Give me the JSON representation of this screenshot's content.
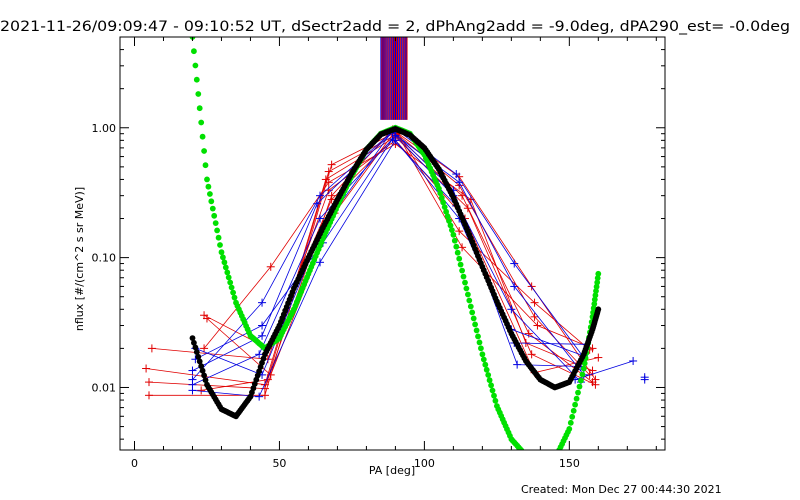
{
  "chart_data": {
    "type": "line",
    "title": "2021-11-26/09:09:47 - 09:10:52 UT, dSectr2add = 2, dPhAng2add = -9.0deg, dPA290_est= -0.0deg",
    "xlabel": "PA [deg]",
    "ylabel": "nflux [#/(cm^2 s sr MeV)]",
    "footer": "Created: Mon Dec 27 00:44:30 2021",
    "xlim": [
      -5,
      183
    ],
    "ylim": [
      0.0033,
      5.0
    ],
    "yscale": "log",
    "x_ticks": [
      0,
      50,
      100,
      150
    ],
    "x_tick_labels": [
      "0",
      "50",
      "100",
      "150"
    ],
    "y_ticks": [
      0.01,
      0.1,
      1.0
    ],
    "y_tick_labels": [
      "0.01",
      "0.10",
      "1.00"
    ],
    "colors": {
      "red": "#e00000",
      "blue": "#0000e0",
      "green": "#00e000",
      "black": "#000000",
      "axes": "#000000"
    },
    "vertical_lines": {
      "x_range": [
        85,
        94
      ],
      "y_range": [
        1.15,
        5.0
      ],
      "colors": [
        "#0000e0",
        "#e00000"
      ]
    },
    "series": [
      {
        "color": "#e00000",
        "x": [
          5,
          45,
          68,
          90,
          112,
          138,
          157
        ],
        "y": [
          0.0087,
          0.0087,
          0.52,
          0.92,
          0.36,
          0.035,
          0.0125
        ]
      },
      {
        "color": "#e00000",
        "x": [
          5,
          45,
          67,
          90,
          113,
          136,
          158
        ],
        "y": [
          0.011,
          0.0098,
          0.46,
          0.88,
          0.3,
          0.026,
          0.011
        ]
      },
      {
        "color": "#e00000",
        "x": [
          4,
          45,
          66,
          90,
          115,
          137,
          159
        ],
        "y": [
          0.014,
          0.0105,
          0.4,
          0.85,
          0.24,
          0.018,
          0.0105
        ]
      },
      {
        "color": "#e00000",
        "x": [
          6,
          46,
          67,
          90,
          114,
          138,
          160
        ],
        "y": [
          0.02,
          0.0165,
          0.33,
          0.8,
          0.2,
          0.013,
          0.017
        ]
      },
      {
        "color": "#e00000",
        "x": [
          24,
          46,
          68,
          91,
          112,
          138,
          157
        ],
        "y": [
          0.036,
          0.02,
          0.28,
          0.9,
          0.16,
          0.045,
          0.0195
        ]
      },
      {
        "color": "#e00000",
        "x": [
          25,
          47,
          69,
          90,
          113,
          139,
          158
        ],
        "y": [
          0.034,
          0.0125,
          0.22,
          0.95,
          0.12,
          0.03,
          0.02
        ]
      },
      {
        "color": "#e00000",
        "x": [
          24,
          47,
          67,
          90,
          116,
          135,
          158
        ],
        "y": [
          0.02,
          0.085,
          0.38,
          0.75,
          0.28,
          0.022,
          0.0135
        ]
      },
      {
        "color": "#e00000",
        "x": [
          23,
          46,
          68,
          89,
          112,
          137,
          159
        ],
        "y": [
          0.0095,
          0.0115,
          0.3,
          0.97,
          0.42,
          0.06,
          0.0115
        ]
      },
      {
        "color": "#0000e0",
        "x": [
          20,
          44,
          64,
          90,
          111,
          131,
          155
        ],
        "y": [
          0.0115,
          0.045,
          0.3,
          0.98,
          0.44,
          0.09,
          0.017
        ]
      },
      {
        "color": "#0000e0",
        "x": [
          20,
          44,
          63,
          89,
          112,
          131,
          155
        ],
        "y": [
          0.0135,
          0.025,
          0.26,
          0.92,
          0.38,
          0.06,
          0.0125
        ]
      },
      {
        "color": "#0000e0",
        "x": [
          20,
          43,
          64,
          90,
          110,
          130,
          154
        ],
        "y": [
          0.0105,
          0.018,
          0.2,
          0.87,
          0.3,
          0.04,
          0.011
        ]
      },
      {
        "color": "#0000e0",
        "x": [
          21,
          44,
          65,
          89,
          111,
          130,
          155
        ],
        "y": [
          0.0165,
          0.03,
          0.13,
          0.82,
          0.25,
          0.028,
          0.0175
        ]
      },
      {
        "color": "#0000e0",
        "x": [
          20,
          43,
          64,
          90,
          112,
          131,
          156
        ],
        "y": [
          0.0095,
          0.0085,
          0.092,
          0.8,
          0.2,
          0.022,
          0.0215
        ]
      },
      {
        "color": "#0000e0",
        "x": [
          21,
          44,
          65,
          89,
          110,
          132,
          154
        ],
        "y": [
          0.02,
          0.0125,
          0.17,
          0.95,
          0.33,
          0.015,
          0.0145
        ]
      },
      {
        "color": "#0000e0",
        "x": [
          152,
          172
        ],
        "y": [
          0.0115,
          0.016
        ]
      }
    ],
    "extra_markers": [
      {
        "color": "#0000e0",
        "x": 176,
        "y": 0.012
      },
      {
        "color": "#0000e0",
        "x": 176,
        "y": 0.0115
      }
    ],
    "fit_curves": [
      {
        "name": "",
        "color": "#00e000",
        "x": [
          20,
          25,
          30,
          35,
          40,
          45,
          50,
          55,
          60,
          65,
          70,
          75,
          80,
          85,
          90,
          95,
          100,
          105,
          110,
          115,
          120,
          125,
          130,
          135,
          140,
          145,
          150,
          155,
          158,
          160
        ],
        "y": [
          5.0,
          0.4,
          0.11,
          0.045,
          0.025,
          0.02,
          0.024,
          0.04,
          0.075,
          0.14,
          0.25,
          0.43,
          0.68,
          0.9,
          1.0,
          0.9,
          0.62,
          0.34,
          0.15,
          0.052,
          0.018,
          0.0072,
          0.004,
          0.003,
          0.0025,
          0.0028,
          0.0048,
          0.014,
          0.035,
          0.075
        ]
      },
      {
        "name": "",
        "color": "#000000",
        "x": [
          20,
          25,
          30,
          35,
          40,
          45,
          50,
          55,
          60,
          65,
          70,
          75,
          80,
          85,
          90,
          95,
          100,
          105,
          110,
          115,
          120,
          125,
          130,
          135,
          140,
          145,
          150,
          155,
          158,
          160
        ],
        "y": [
          0.024,
          0.0105,
          0.0068,
          0.006,
          0.0085,
          0.018,
          0.03,
          0.058,
          0.1,
          0.17,
          0.28,
          0.45,
          0.68,
          0.89,
          0.98,
          0.88,
          0.7,
          0.48,
          0.29,
          0.16,
          0.085,
          0.046,
          0.026,
          0.016,
          0.0115,
          0.01,
          0.011,
          0.018,
          0.028,
          0.04
        ]
      }
    ]
  }
}
